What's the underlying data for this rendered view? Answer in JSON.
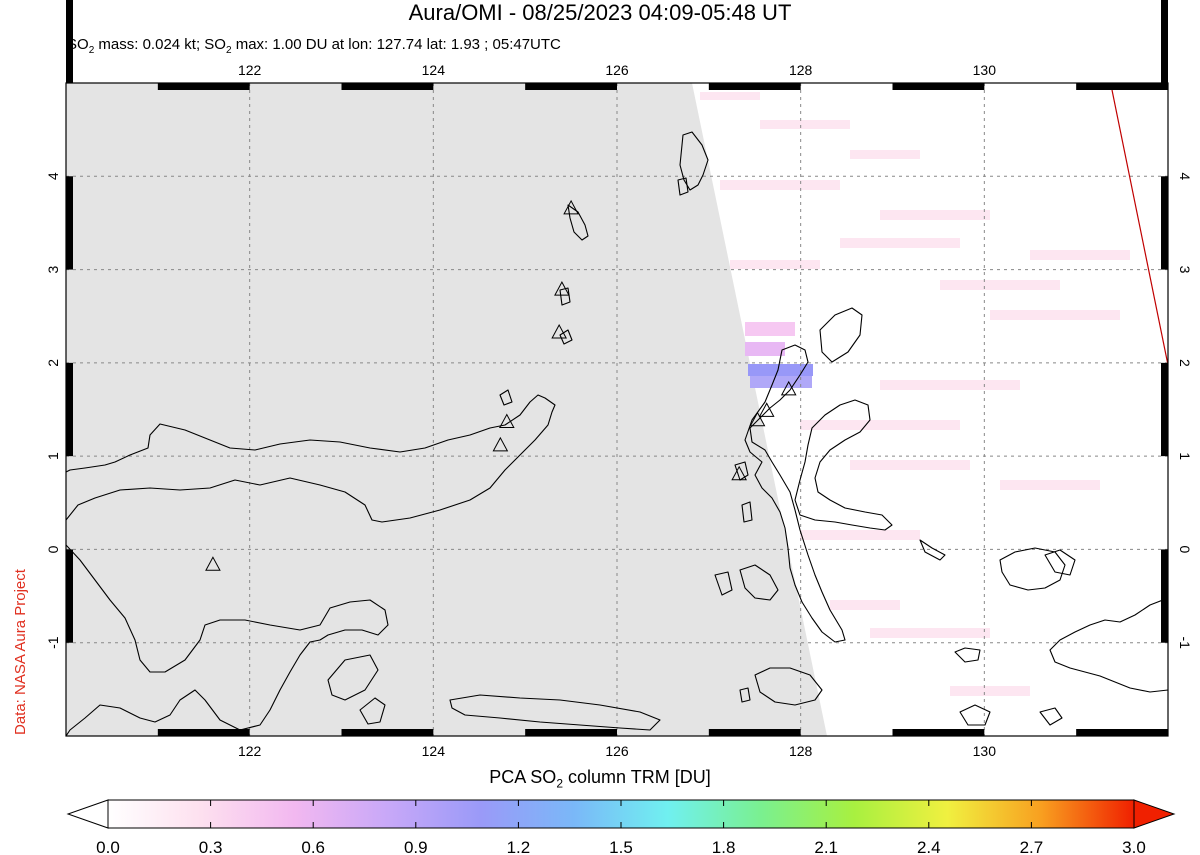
{
  "header": {
    "title": "Aura/OMI - 08/25/2023 04:09-05:48 UT",
    "subtitle_prefix": "SO",
    "subtitle_sub1": "2",
    "subtitle_mid": " mass: 0.024 kt; SO",
    "subtitle_sub2": "2",
    "subtitle_suffix": " max: 1.00 DU at lon: 127.74 lat: 1.93 ; 05:47UTC"
  },
  "credit": "Data: NASA Aura Project",
  "map": {
    "lon_range": [
      120,
      132
    ],
    "lat_range": [
      -2,
      5
    ],
    "lon_ticks": [
      "122",
      "124",
      "126",
      "128",
      "130"
    ],
    "lat_ticks": [
      "4",
      "3",
      "2",
      "1",
      "0",
      "-1"
    ],
    "no_data_color": "#e4e4e4",
    "grid": true,
    "volcanoes": [
      {
        "lon": 121.6,
        "lat": -0.17
      },
      {
        "lon": 124.73,
        "lat": 1.11
      },
      {
        "lon": 124.8,
        "lat": 1.36
      },
      {
        "lon": 125.37,
        "lat": 2.32
      },
      {
        "lon": 125.4,
        "lat": 2.78
      },
      {
        "lon": 125.5,
        "lat": 3.65
      },
      {
        "lon": 127.33,
        "lat": 0.8
      },
      {
        "lon": 127.53,
        "lat": 1.38
      },
      {
        "lon": 127.63,
        "lat": 1.48
      },
      {
        "lon": 127.87,
        "lat": 1.71
      }
    ]
  },
  "colorbar": {
    "title_prefix": "PCA SO",
    "title_sub": "2",
    "title_suffix": " column TRM [DU]",
    "ticks": [
      "0.0",
      "0.3",
      "0.6",
      "0.9",
      "1.2",
      "1.5",
      "1.8",
      "2.1",
      "2.4",
      "2.7",
      "3.0"
    ],
    "range": [
      0.0,
      3.0
    ],
    "colors": [
      "#ffffff",
      "#fde0ef",
      "#f2b8f0",
      "#c8a8f8",
      "#9a9af8",
      "#7ab8f8",
      "#70f0f0",
      "#7af090",
      "#a8f040",
      "#f0f040",
      "#f8a020",
      "#f02000"
    ]
  }
}
